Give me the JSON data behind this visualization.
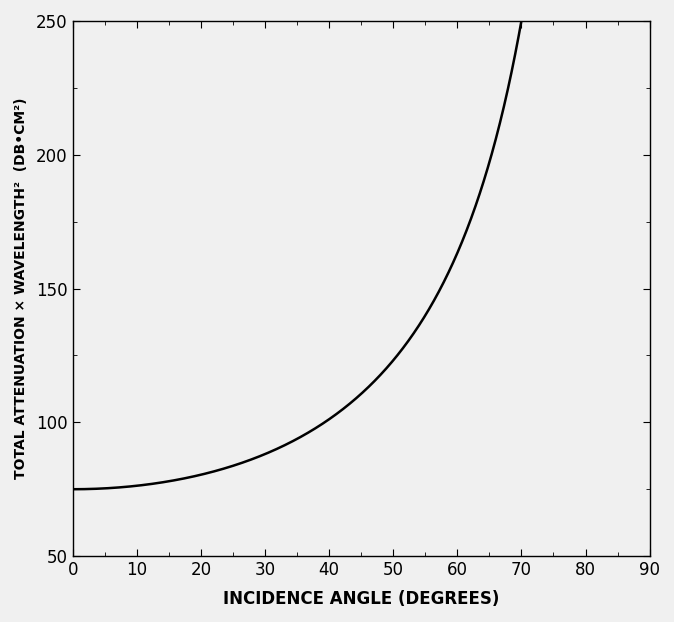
{
  "title": "",
  "xlabel": "INCIDENCE ANGLE (DEGREES)",
  "ylabel": "TOTAL ATTENUATION × WAVELENGTH²  (DB•CM²)",
  "xlim": [
    0,
    90
  ],
  "ylim": [
    50,
    250
  ],
  "xticks": [
    0,
    10,
    20,
    30,
    40,
    50,
    60,
    70,
    80,
    90
  ],
  "yticks": [
    50,
    100,
    150,
    200,
    250
  ],
  "value_at_zero": 75.0,
  "curve_color": "#000000",
  "background_color": "#f0f0f0",
  "line_width": 1.8,
  "xlabel_fontsize": 12,
  "ylabel_fontsize": 10,
  "tick_fontsize": 12
}
